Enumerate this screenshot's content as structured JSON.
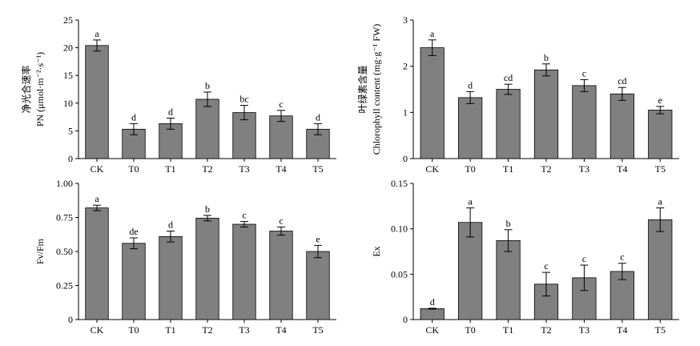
{
  "chart_data": [
    {
      "type": "bar",
      "title": "",
      "xlabel": "",
      "ylabel_lines": [
        "净光合速率",
        "PN (μmol·m⁻²·s⁻¹)"
      ],
      "categories": [
        "CK",
        "T0",
        "T1",
        "T2",
        "T3",
        "T4",
        "T5"
      ],
      "values": [
        20.4,
        5.3,
        6.3,
        10.7,
        8.3,
        7.7,
        5.3
      ],
      "errors": [
        1.0,
        1.0,
        1.0,
        1.3,
        1.3,
        1.0,
        1.0
      ],
      "letters": [
        "a",
        "d",
        "d",
        "b",
        "bc",
        "c",
        "d"
      ],
      "ylim": [
        0,
        25
      ],
      "yticks": [
        "0",
        "5",
        "10",
        "15",
        "20",
        "25"
      ],
      "ytick_values": [
        0,
        5,
        10,
        15,
        20,
        25
      ],
      "bar_color": "#808080",
      "grid": false
    },
    {
      "type": "bar",
      "title": "",
      "xlabel": "",
      "ylabel_lines": [
        "叶绿素含量",
        "Chlorophyll content (mg·g⁻¹ FW)"
      ],
      "categories": [
        "CK",
        "T0",
        "T1",
        "T2",
        "T3",
        "T4",
        "T5"
      ],
      "values": [
        2.4,
        1.32,
        1.5,
        1.92,
        1.58,
        1.4,
        1.05
      ],
      "errors": [
        0.17,
        0.13,
        0.11,
        0.13,
        0.13,
        0.14,
        0.08
      ],
      "letters": [
        "a",
        "d",
        "cd",
        "b",
        "c",
        "cd",
        "e"
      ],
      "ylim": [
        0,
        3
      ],
      "yticks": [
        "0",
        "1",
        "2",
        "3"
      ],
      "ytick_values": [
        0,
        1,
        2,
        3
      ],
      "bar_color": "#808080",
      "grid": false
    },
    {
      "type": "bar",
      "title": "",
      "xlabel": "",
      "ylabel_lines": [
        "Fv/Fm"
      ],
      "categories": [
        "CK",
        "T0",
        "T1",
        "T2",
        "T3",
        "T4",
        "T5"
      ],
      "values": [
        0.82,
        0.56,
        0.61,
        0.745,
        0.7,
        0.65,
        0.5
      ],
      "errors": [
        0.02,
        0.04,
        0.04,
        0.02,
        0.02,
        0.03,
        0.045
      ],
      "letters": [
        "a",
        "de",
        "d",
        "b",
        "c",
        "c",
        "e"
      ],
      "ylim": [
        0,
        1.0
      ],
      "yticks": [
        "0",
        "0.25",
        "0.50",
        "0.75",
        "1.00"
      ],
      "ytick_values": [
        0,
        0.25,
        0.5,
        0.75,
        1.0
      ],
      "bar_color": "#808080",
      "grid": false
    },
    {
      "type": "bar",
      "title": "",
      "xlabel": "",
      "ylabel_lines": [
        "Ex"
      ],
      "categories": [
        "CK",
        "T0",
        "T1",
        "T2",
        "T3",
        "T4",
        "T5"
      ],
      "values": [
        0.012,
        0.107,
        0.087,
        0.039,
        0.046,
        0.053,
        0.11
      ],
      "errors": [
        0.0005,
        0.016,
        0.012,
        0.013,
        0.014,
        0.009,
        0.013
      ],
      "letters": [
        "d",
        "a",
        "b",
        "c",
        "c",
        "c",
        "a"
      ],
      "ylim": [
        0,
        0.15
      ],
      "yticks": [
        "0",
        "0.05",
        "0.10",
        "0.15"
      ],
      "ytick_values": [
        0,
        0.05,
        0.1,
        0.15
      ],
      "bar_color": "#808080",
      "grid": false
    }
  ]
}
